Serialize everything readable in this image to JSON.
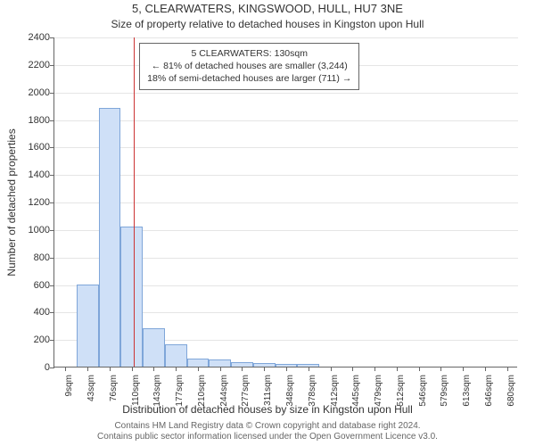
{
  "title_main": "5, CLEARWATERS, KINGSWOOD, HULL, HU7 3NE",
  "title_sub": "Size of property relative to detached houses in Kingston upon Hull",
  "y_label": "Number of detached properties",
  "x_label": "Distribution of detached houses by size in Kingston upon Hull",
  "footer_line1": "Contains HM Land Registry data © Crown copyright and database right 2024.",
  "footer_line2": "Contains public sector information licensed under the Open Government Licence v3.0.",
  "chart": {
    "type": "histogram",
    "background_color": "#ffffff",
    "grid_color": "#e5e5e5",
    "axis_color": "#666666",
    "bar_fill": "#cfe0f7",
    "bar_stroke": "#7fa6d9",
    "marker_color": "#cc3333",
    "text_color": "#333333",
    "title_fontsize": 13,
    "subtitle_fontsize": 12,
    "label_fontsize": 12,
    "tick_fontsize": 11,
    "xtick_fontsize": 10,
    "annotation_fontsize": 10.5,
    "footer_fontsize": 10,
    "ylim": [
      0,
      2400
    ],
    "ytick_step": 200,
    "x_categories": [
      "9sqm",
      "43sqm",
      "76sqm",
      "110sqm",
      "143sqm",
      "177sqm",
      "210sqm",
      "244sqm",
      "277sqm",
      "311sqm",
      "348sqm",
      "378sqm",
      "412sqm",
      "445sqm",
      "479sqm",
      "512sqm",
      "546sqm",
      "579sqm",
      "613sqm",
      "646sqm",
      "680sqm"
    ],
    "bar_values": [
      0,
      600,
      1880,
      1020,
      280,
      160,
      60,
      55,
      30,
      25,
      20,
      20,
      0,
      0,
      0,
      0,
      0,
      0,
      0,
      0,
      0
    ],
    "bar_width_ratio": 1.0,
    "marker_value_sqm": 130,
    "marker_bin_index_fractional": 3.6
  },
  "annotation": {
    "line1": "5 CLEARWATERS: 130sqm",
    "line2": "← 81% of detached houses are smaller (3,244)",
    "line3": "18% of semi-detached houses are larger (711) →"
  }
}
